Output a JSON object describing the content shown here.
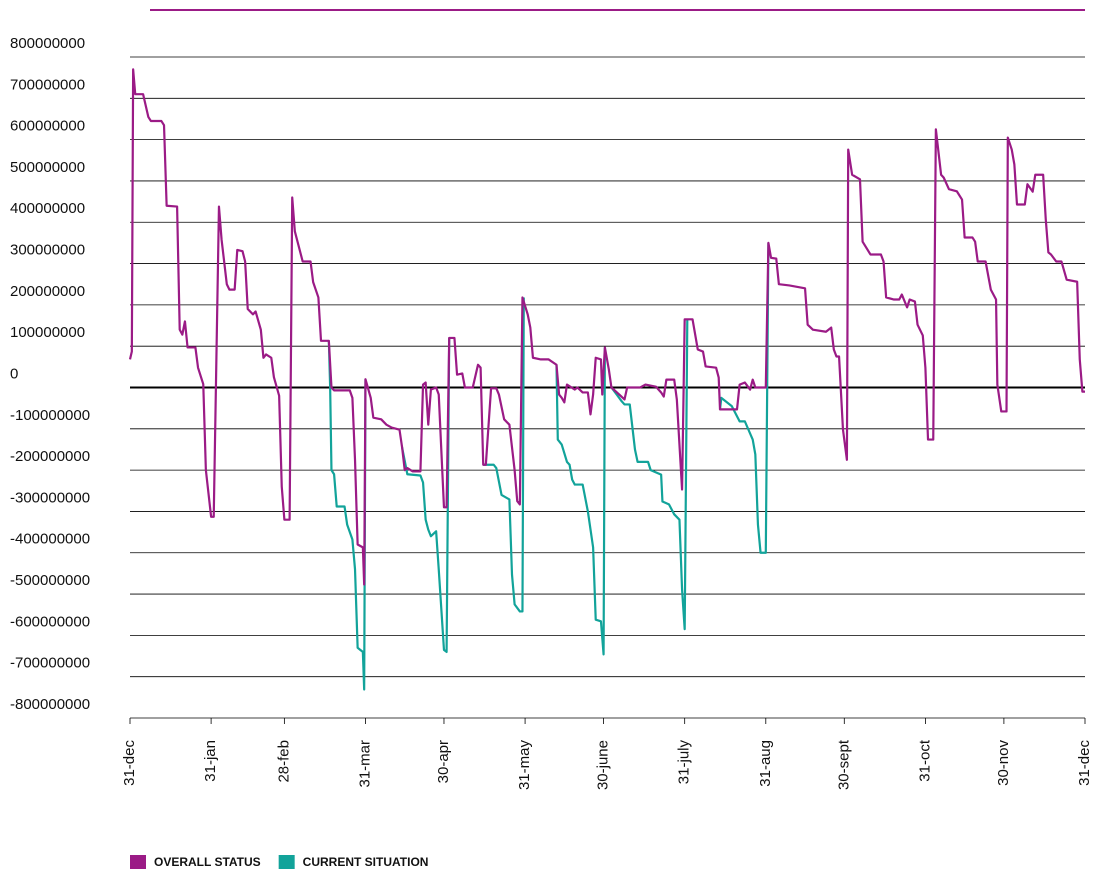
{
  "chart_data": {
    "type": "line",
    "xticks": [
      {
        "value": 0,
        "label": "31-dec"
      },
      {
        "value": 31,
        "label": "31-jan"
      },
      {
        "value": 59,
        "label": "28-feb"
      },
      {
        "value": 90,
        "label": "31-mar"
      },
      {
        "value": 120,
        "label": "30-apr"
      },
      {
        "value": 151,
        "label": "31-may"
      },
      {
        "value": 181,
        "label": "30-june"
      },
      {
        "value": 212,
        "label": "31-july"
      },
      {
        "value": 243,
        "label": "31-aug"
      },
      {
        "value": 273,
        "label": "30-sept"
      },
      {
        "value": 304,
        "label": "31-oct"
      },
      {
        "value": 334,
        "label": "30-nov"
      },
      {
        "value": 365,
        "label": "31-dec"
      }
    ],
    "xlim": [
      0,
      365
    ],
    "ylim": [
      -800000000,
      800000000
    ],
    "yticks": [
      800000000,
      700000000,
      600000000,
      500000000,
      400000000,
      300000000,
      200000000,
      100000000,
      0,
      -100000000,
      -200000000,
      -300000000,
      -400000000,
      -500000000,
      -600000000,
      -700000000,
      -800000000
    ],
    "grid": true,
    "legend": "bottom-left",
    "series": [
      {
        "name": "OVERALL STATUS",
        "color": "#9b1b86",
        "x": [
          0,
          0.7,
          1.2,
          2,
          5,
          7,
          8,
          12,
          13,
          14,
          18,
          19,
          20,
          21,
          22,
          25,
          26,
          28,
          29,
          31,
          32,
          34,
          35,
          37,
          38,
          40,
          41,
          43,
          44,
          45,
          47,
          48,
          50,
          51,
          52,
          54,
          55,
          57,
          58,
          59,
          61,
          62,
          63,
          66,
          69,
          70,
          72,
          73,
          76,
          77,
          78,
          84,
          85,
          86,
          87,
          89,
          89.5,
          90,
          92,
          93,
          96,
          98,
          100,
          103,
          104,
          105,
          106,
          108,
          111,
          112,
          113,
          114,
          115,
          117,
          118,
          120,
          121,
          122,
          124,
          125,
          127,
          128,
          131,
          133,
          134,
          135,
          136,
          138,
          140,
          141,
          143,
          145,
          147,
          148,
          149,
          150,
          152,
          153,
          154,
          157,
          160,
          163,
          164,
          165,
          166,
          167,
          170,
          171,
          173,
          175,
          176,
          177,
          178,
          180,
          180.5,
          181.5,
          183,
          184,
          187,
          189,
          190,
          195,
          197,
          201,
          203,
          204,
          205,
          208,
          209,
          211,
          212,
          215,
          217,
          219,
          220,
          224,
          225,
          225.5,
          227,
          232,
          233,
          235,
          237,
          238,
          239,
          243,
          244,
          245,
          247,
          248,
          252,
          258,
          259,
          261,
          266,
          268,
          269,
          270,
          271,
          272.5,
          274,
          274.5,
          276,
          279,
          280,
          283,
          287,
          288,
          289,
          292,
          294,
          295,
          297,
          298,
          300,
          301,
          303,
          304,
          305,
          307,
          308,
          310,
          311,
          313,
          316,
          318,
          319,
          322,
          323,
          324,
          327,
          329,
          331,
          331.5,
          333,
          335,
          335.5,
          337,
          338,
          339,
          342,
          343,
          345,
          346,
          349,
          350,
          351,
          352,
          354,
          356,
          358,
          362,
          363,
          364,
          365
        ],
        "values": [
          68000000,
          87000000,
          770000000,
          710000000,
          710000000,
          655000000,
          645000000,
          645000000,
          635000000,
          440000000,
          438000000,
          140000000,
          128000000,
          160000000,
          97000000,
          97000000,
          48000000,
          8000000,
          -200000000,
          -313000000,
          -313000000,
          438000000,
          358000000,
          250000000,
          237000000,
          237000000,
          333000000,
          330000000,
          305000000,
          190000000,
          177000000,
          184000000,
          140000000,
          72000000,
          80000000,
          72000000,
          25000000,
          -20000000,
          -240000000,
          -320000000,
          -320000000,
          460000000,
          378000000,
          305000000,
          305000000,
          255000000,
          218000000,
          113000000,
          113000000,
          0,
          -7000000,
          -7000000,
          -25000000,
          -175000000,
          -380000000,
          -387000000,
          -477000000,
          20000000,
          -25000000,
          -73000000,
          -77000000,
          -90000000,
          -97000000,
          -102000000,
          -145000000,
          -200000000,
          -195000000,
          -203000000,
          -203000000,
          7000000,
          12000000,
          -90000000,
          -5000000,
          0,
          -17000000,
          -290000000,
          -290000000,
          120000000,
          120000000,
          31000000,
          34000000,
          0,
          0,
          55000000,
          48000000,
          -187000000,
          -187000000,
          -2000000,
          -2000000,
          -17000000,
          -77000000,
          -90000000,
          -200000000,
          -275000000,
          -283000000,
          218000000,
          177000000,
          145000000,
          72000000,
          68000000,
          68000000,
          55000000,
          -17000000,
          -25000000,
          -36000000,
          7000000,
          -5000000,
          0,
          -12000000,
          -12000000,
          -65000000,
          -17000000,
          72000000,
          68000000,
          -17000000,
          97000000,
          44000000,
          0,
          -17000000,
          -29000000,
          0,
          0,
          7000000,
          2000000,
          -12000000,
          -22000000,
          19000000,
          19000000,
          -29000000,
          -247000000,
          165000000,
          165000000,
          92000000,
          87000000,
          51000000,
          48000000,
          24000000,
          -53000000,
          -53000000,
          -53000000,
          7000000,
          12000000,
          -5000000,
          19000000,
          0,
          0,
          350000000,
          314000000,
          312000000,
          250000000,
          247000000,
          240000000,
          152000000,
          140000000,
          135000000,
          145000000,
          92000000,
          75000000,
          75000000,
          -102000000,
          -175000000,
          576000000,
          515000000,
          504000000,
          353000000,
          322000000,
          322000000,
          305000000,
          218000000,
          213000000,
          213000000,
          225000000,
          194000000,
          213000000,
          208000000,
          152000000,
          126000000,
          48000000,
          -126000000,
          -126000000,
          625000000,
          515000000,
          508000000,
          480000000,
          475000000,
          455000000,
          363000000,
          363000000,
          353000000,
          305000000,
          305000000,
          237000000,
          213000000,
          7000000,
          -58000000,
          -58000000,
          605000000,
          576000000,
          540000000,
          443000000,
          443000000,
          492000000,
          474000000,
          515000000,
          515000000,
          407000000,
          327000000,
          322000000,
          305000000,
          305000000,
          261000000,
          256000000,
          68000000,
          -10000000,
          -10000000
        ]
      },
      {
        "name": "CURRENT SITUATION",
        "color": "#12a39a",
        "x": [
          76,
          76.5,
          77,
          78,
          79,
          82,
          83,
          85,
          86,
          87,
          88,
          89,
          89.5,
          90,
          null,
          104,
          106,
          111,
          112,
          113,
          114,
          115,
          117,
          118,
          120,
          121,
          122,
          null,
          135,
          139,
          140,
          142,
          145,
          146,
          147,
          149,
          150,
          150.5,
          null,
          163,
          163.5,
          165,
          167,
          168,
          169,
          170,
          173,
          175,
          177,
          178,
          180,
          181,
          181.5,
          null,
          184,
          186,
          188,
          189,
          191,
          193,
          194,
          198,
          199,
          203,
          203.5,
          206,
          208,
          210,
          211,
          212,
          213,
          null,
          225.5,
          226,
          230,
          233,
          235,
          238,
          239,
          240,
          241,
          243,
          244
        ],
        "values": [
          113000000,
          0,
          -200000000,
          -210000000,
          -288000000,
          -288000000,
          -332000000,
          -368000000,
          -440000000,
          -630000000,
          -635000000,
          -640000000,
          -731000000,
          20000000,
          null,
          -145000000,
          -210000000,
          -213000000,
          -230000000,
          -320000000,
          -344000000,
          -360000000,
          -348000000,
          -440000000,
          -635000000,
          -640000000,
          120000000,
          null,
          -187000000,
          -187000000,
          -195000000,
          -260000000,
          -271000000,
          -453000000,
          -525000000,
          -542000000,
          -542000000,
          218000000,
          null,
          55000000,
          -126000000,
          -138000000,
          -180000000,
          -187000000,
          -223000000,
          -235000000,
          -235000000,
          -300000000,
          -387000000,
          -562000000,
          -566000000,
          -646000000,
          97000000,
          null,
          0,
          -17000000,
          -34000000,
          -41000000,
          -41000000,
          -150000000,
          -180000000,
          -180000000,
          -200000000,
          -211000000,
          -276000000,
          -283000000,
          -307000000,
          -320000000,
          -489000000,
          -585000000,
          165000000,
          null,
          -53000000,
          -25000000,
          -45000000,
          -82000000,
          -82000000,
          -126000000,
          -162000000,
          -332000000,
          -400000000,
          -400000000,
          350000000
        ]
      }
    ]
  }
}
